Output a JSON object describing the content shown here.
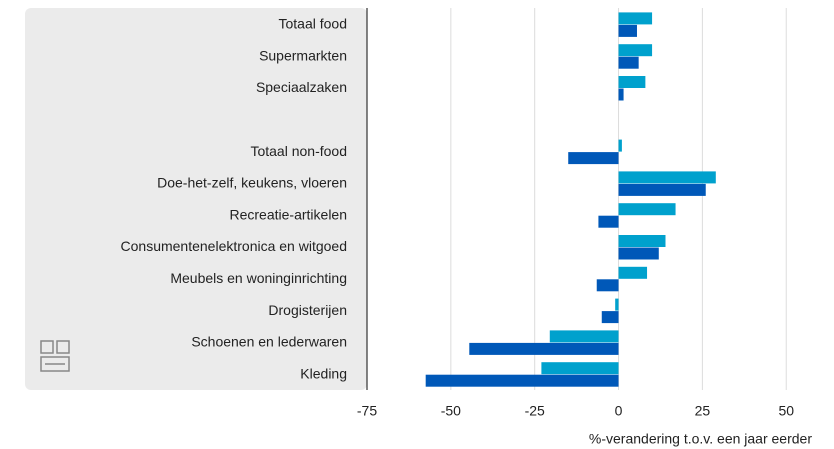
{
  "chart_data": {
    "type": "hbar",
    "categories": [
      "Totaal food",
      "Supermarkten",
      "Speciaalzaken",
      null,
      "Totaal non-food",
      "Doe-het-zelf, keukens, vloeren",
      "Recreatie-artikelen",
      "Consumentenelektronica en witgoed",
      "Meubels en woninginrichting",
      "Drogisterijen",
      "Schoenen en lederwaren",
      "Kleding"
    ],
    "series": [
      {
        "color": "#00a1cd",
        "values": [
          10,
          10,
          8,
          null,
          1,
          29,
          17,
          14,
          8.5,
          -1,
          -20.5,
          -23
        ]
      },
      {
        "color": "#0058b8",
        "values": [
          5.5,
          6,
          1.5,
          null,
          -15,
          26,
          -6,
          12,
          -6.5,
          -5,
          -44.5,
          -57.5
        ]
      }
    ],
    "xlim": [
      -75,
      55
    ],
    "xticks": [
      -75,
      -50,
      -25,
      0,
      25,
      50
    ],
    "grid": true,
    "xlabel": "%-verandering t.o.v. een jaar eerder"
  }
}
